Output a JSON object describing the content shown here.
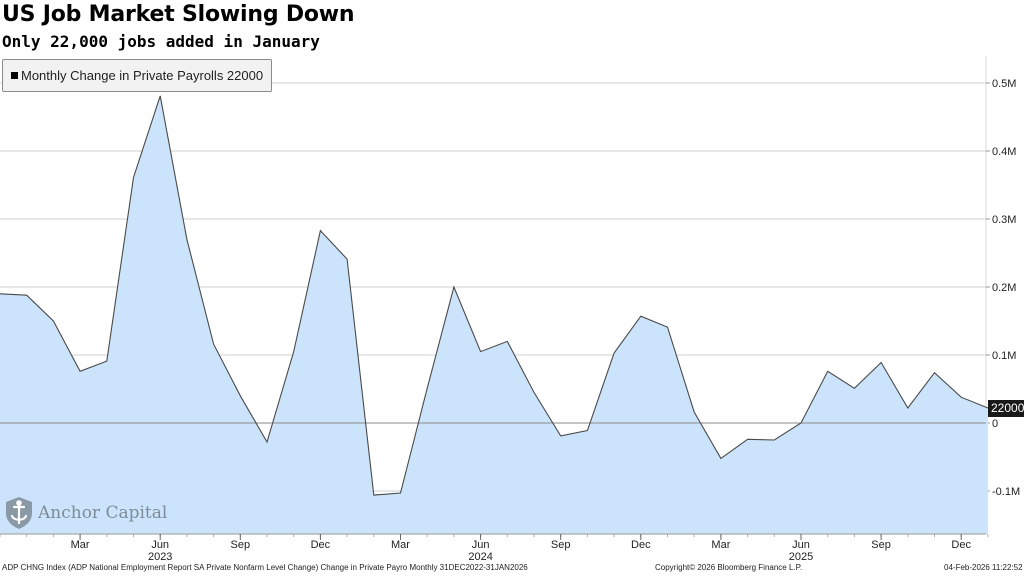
{
  "header": {
    "title": "US Job Market Slowing Down",
    "subtitle": "Only 22,000 jobs added in January"
  },
  "legend": {
    "label": "Monthly Change in Private Payrolls 22000"
  },
  "last_value_label": "22000",
  "logo": {
    "name": "Anchor Capital"
  },
  "footer": {
    "source": "ADP CHNG Index (ADP National Employment Report SA Private Nonfarm Level Change) Change in Private Payro Monthly 31DEC2022-31JAN2026",
    "copyright": "Copyright© 2026 Bloomberg Finance L.P.",
    "timestamp": "04-Feb-2026 11:22:52"
  },
  "colors": {
    "area_fill": "#cce4fb",
    "line": "#4a4a4a",
    "grid": "#cfcfcf",
    "zero_line": "#8a8a8a",
    "logo": "#7d8c98"
  },
  "chart_data": {
    "type": "area",
    "series": [
      {
        "name": "Monthly Change in Private Payrolls",
        "points": [
          [
            "Dec 2022",
            190000
          ],
          [
            "Jan 2023",
            188000
          ],
          [
            "Feb 2023",
            150000
          ],
          [
            "Mar 2023",
            76000
          ],
          [
            "Apr 2023",
            91000
          ],
          [
            "May 2023",
            361000
          ],
          [
            "Jun 2023",
            481000
          ],
          [
            "Jul 2023",
            270000
          ],
          [
            "Aug 2023",
            116000
          ],
          [
            "Sep 2023",
            40000
          ],
          [
            "Oct 2023",
            -28000
          ],
          [
            "Nov 2023",
            105000
          ],
          [
            "Dec 2023",
            283000
          ],
          [
            "Jan 2024",
            241000
          ],
          [
            "Feb 2024",
            -106000
          ],
          [
            "Mar 2024",
            -103000
          ],
          [
            "Apr 2024",
            51000
          ],
          [
            "May 2024",
            200000
          ],
          [
            "Jun 2024",
            105000
          ],
          [
            "Jul 2024",
            120000
          ],
          [
            "Aug 2024",
            45000
          ],
          [
            "Sep 2024",
            -19000
          ],
          [
            "Oct 2024",
            -11000
          ],
          [
            "Nov 2024",
            103000
          ],
          [
            "Dec 2024",
            157000
          ],
          [
            "Jan 2025",
            141000
          ],
          [
            "Feb 2025",
            16000
          ],
          [
            "Mar 2025",
            -52000
          ],
          [
            "Apr 2025",
            -24000
          ],
          [
            "May 2025",
            -25000
          ],
          [
            "Jun 2025",
            0
          ],
          [
            "Jul 2025",
            76000
          ],
          [
            "Aug 2025",
            51000
          ],
          [
            "Sep 2025",
            89000
          ],
          [
            "Oct 2025",
            22000
          ],
          [
            "Nov 2025",
            74000
          ],
          [
            "Dec 2025",
            38000
          ],
          [
            "Jan 2026",
            22000
          ]
        ]
      }
    ],
    "y_ticks": [
      {
        "value": 500000,
        "label": "0.5M"
      },
      {
        "value": 400000,
        "label": "0.4M"
      },
      {
        "value": 300000,
        "label": "0.3M"
      },
      {
        "value": 200000,
        "label": "0.2M"
      },
      {
        "value": 100000,
        "label": "0.1M"
      },
      {
        "value": 0,
        "label": "0"
      },
      {
        "value": -100000,
        "label": "-0.1M"
      }
    ],
    "ylim": [
      -160000,
      560000
    ],
    "x_ticks": [
      {
        "month": "Mar 2023",
        "label": "Mar"
      },
      {
        "month": "Jun 2023",
        "label": "Jun"
      },
      {
        "month": "Sep 2023",
        "label": "Sep"
      },
      {
        "month": "Dec 2023",
        "label": "Dec"
      },
      {
        "month": "Mar 2024",
        "label": "Mar"
      },
      {
        "month": "Jun 2024",
        "label": "Jun"
      },
      {
        "month": "Sep 2024",
        "label": "Sep"
      },
      {
        "month": "Dec 2024",
        "label": "Dec"
      },
      {
        "month": "Mar 2025",
        "label": "Mar"
      },
      {
        "month": "Jun 2025",
        "label": "Jun"
      },
      {
        "month": "Sep 2025",
        "label": "Sep"
      },
      {
        "month": "Dec 2025",
        "label": "Dec"
      }
    ],
    "year_labels": [
      {
        "month": "Jun 2023",
        "label": "2023"
      },
      {
        "month": "Jun 2024",
        "label": "2024"
      },
      {
        "month": "Jun 2025",
        "label": "2025"
      }
    ],
    "grid": true,
    "y_axis_side": "right",
    "legend_position": "top-left"
  }
}
